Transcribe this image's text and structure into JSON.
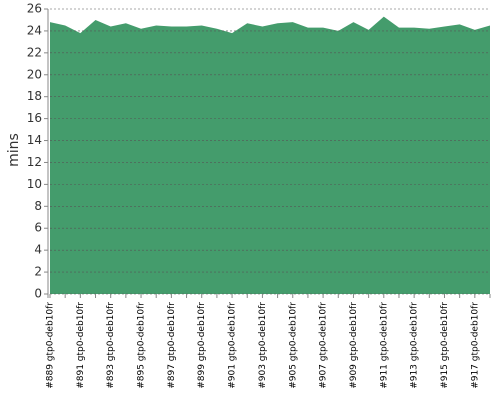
{
  "chart_data": {
    "type": "area",
    "y_label": "mins",
    "categories": [
      "#889 gtp0-deb10fr",
      null,
      "#891 gtp0-deb10fr",
      null,
      "#893 gtp0-deb10fr",
      null,
      "#895 gtp0-deb10fr",
      null,
      "#897 gtp0-deb10fr",
      null,
      "#899 gtp0-deb10fr",
      null,
      "#901 gtp0-deb10fr",
      null,
      "#903 gtp0-deb10fr",
      null,
      "#905 gtp0-deb10fr",
      null,
      "#907 gtp0-deb10fr",
      null,
      "#909 gtp0-deb10fr",
      null,
      "#911 gtp0-deb10fr",
      null,
      "#913 gtp0-deb10fr",
      null,
      "#915 gtp0-deb10fr",
      null,
      "#917 gtp0-deb10fr",
      null
    ],
    "values": [
      24.8,
      24.5,
      23.8,
      25.0,
      24.4,
      24.7,
      24.2,
      24.5,
      24.4,
      24.4,
      24.5,
      24.2,
      23.8,
      24.7,
      24.4,
      24.7,
      24.8,
      24.3,
      24.3,
      24.0,
      24.8,
      24.1,
      25.3,
      24.3,
      24.3,
      24.2,
      24.4,
      24.6,
      24.1,
      24.5
    ],
    "color": "#449c6c",
    "ylim": [
      0,
      26
    ],
    "yticks": [
      0,
      2,
      4,
      6,
      8,
      10,
      12,
      14,
      16,
      18,
      20,
      22,
      24,
      26
    ],
    "grid": true
  }
}
